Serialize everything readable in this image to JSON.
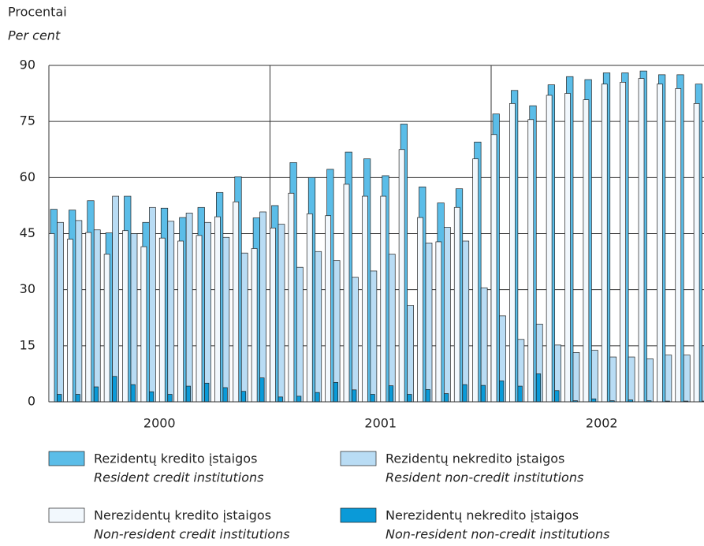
{
  "chart_data": {
    "type": "bar",
    "axis_title": "Procentai",
    "axis_title_en": "Per cent",
    "year_labels": [
      "2000",
      "2001",
      "2002"
    ],
    "ylim": [
      0,
      90
    ],
    "yticks": [
      0,
      15,
      30,
      45,
      60,
      75,
      90
    ],
    "grid": true,
    "series": [
      {
        "name": "Rezidentų kredito įstaigos",
        "name_en": "Resident credit institutions",
        "color": "#5bbde8",
        "values": [
          51.5,
          51.3,
          53.8,
          45.2,
          55,
          48,
          51.8,
          49.3,
          52,
          56,
          60.2,
          49.2,
          52.5,
          64,
          60,
          62.2,
          66.8,
          65,
          60.5,
          74.3,
          57.5,
          53.2,
          57,
          69.5,
          77,
          83.3,
          79.2,
          84.8,
          87,
          86.2,
          88,
          88,
          88.5,
          87.5,
          87.5,
          85
        ]
      },
      {
        "name": "Rezidentų nekredito įstaigos",
        "name_en": "Resident non-credit institutions",
        "color": "#b9dcf4",
        "values": [
          48,
          48.5,
          46,
          55,
          45,
          52,
          48.3,
          50.5,
          48,
          44,
          39.8,
          50.8,
          47.5,
          36,
          40.2,
          37.8,
          33.3,
          35,
          39.5,
          25.8,
          42.5,
          46.7,
          43,
          30.5,
          23,
          16.7,
          20.8,
          15.2,
          13.2,
          13.8,
          12,
          12,
          11.5,
          12.5,
          12.5,
          15
        ]
      },
      {
        "name": "Nerezidentų kredito įstaigos",
        "name_en": "Non-resident credit institutions",
        "color": "#f2f8fd",
        "values": [
          45,
          43.5,
          45.3,
          39.5,
          45.8,
          41.5,
          43.8,
          43,
          44.5,
          49.5,
          53.5,
          41,
          46.5,
          55.8,
          50.3,
          49.8,
          58.2,
          55,
          55,
          67.5,
          49.3,
          42.8,
          52,
          65,
          71.5,
          79.8,
          75.5,
          82,
          82.5,
          80.8,
          85,
          85.5,
          86.5,
          85,
          83.8,
          79.8
        ]
      },
      {
        "name": "Nerezidentų nekredito įstaigos",
        "name_en": "Non-resident non-credit institutions",
        "color": "#0a9ad8",
        "values": [
          2,
          2,
          4,
          6.8,
          4.6,
          2.7,
          2,
          4.2,
          5,
          3.8,
          2.8,
          6.4,
          1.3,
          1.5,
          2.5,
          5.2,
          3.2,
          2,
          4.3,
          2,
          3.3,
          2.2,
          4.6,
          4.4,
          5.6,
          4.2,
          7.5,
          3,
          0.3,
          0.8,
          0.3,
          0.5,
          0.3,
          0.2,
          0.2,
          0.2
        ]
      }
    ]
  }
}
